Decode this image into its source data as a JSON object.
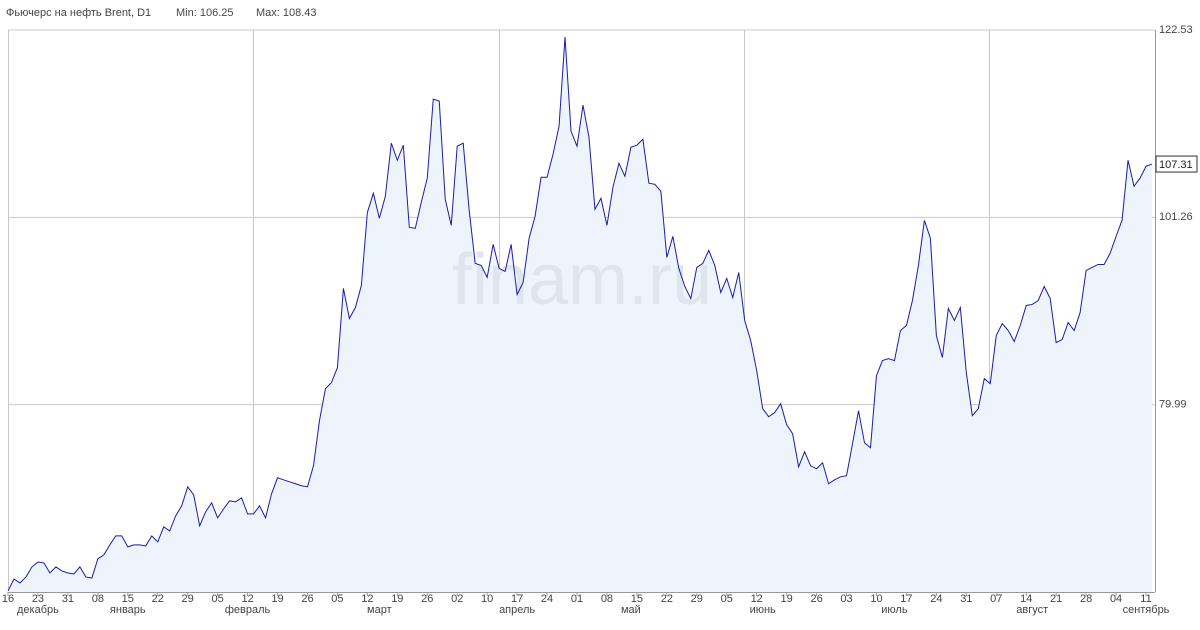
{
  "chart_data": {
    "type": "area",
    "title": "Фьючерс на нефть Brent, D1",
    "min_label": "Min: 106.25",
    "max_label": "Max: 108.43",
    "watermark": "finam.ru",
    "color": "#1c1caa",
    "fill_color": "#edf4fc",
    "grid": true,
    "ylim": [
      58.72,
      122.53
    ],
    "yticks": [
      79.99,
      101.26,
      122.53
    ],
    "categories": [
      "16",
      null,
      null,
      null,
      null,
      "23",
      null,
      null,
      null,
      null,
      "31",
      null,
      null,
      null,
      null,
      "08",
      null,
      null,
      null,
      null,
      "15",
      null,
      null,
      null,
      null,
      "22",
      null,
      null,
      null,
      null,
      "29",
      null,
      null,
      null,
      null,
      "05",
      null,
      null,
      null,
      null,
      "12",
      null,
      null,
      null,
      null,
      "19",
      null,
      null,
      null,
      null,
      "26",
      null,
      null,
      null,
      null,
      "05",
      null,
      null,
      null,
      null,
      "12",
      null,
      null,
      null,
      null,
      "19",
      null,
      null,
      null,
      null,
      "26",
      null,
      null,
      null,
      null,
      "02",
      null,
      null,
      null,
      null,
      "10",
      null,
      null,
      null,
      null,
      "17",
      null,
      null,
      null,
      null,
      "24",
      null,
      null,
      null,
      null,
      "01",
      null,
      null,
      null,
      null,
      "08",
      null,
      null,
      null,
      null,
      "15",
      null,
      null,
      null,
      null,
      "22",
      null,
      null,
      null,
      null,
      "29",
      null,
      null,
      null,
      null,
      "05",
      null,
      null,
      null,
      null,
      "12",
      null,
      null,
      null,
      null,
      "19",
      null,
      null,
      null,
      null,
      "26",
      null,
      null,
      null,
      null,
      "03",
      null,
      null,
      null,
      null,
      "10",
      null,
      null,
      null,
      null,
      "17",
      null,
      null,
      null,
      null,
      "24",
      null,
      null,
      null,
      null,
      "31",
      null,
      null,
      null,
      null,
      "07",
      null,
      null,
      null,
      null,
      "14",
      null,
      null,
      null,
      null,
      "21",
      null,
      null,
      null,
      null,
      "28",
      null,
      null,
      null,
      null,
      "04",
      null,
      null,
      null,
      null,
      "11",
      null
    ],
    "months": [
      null,
      null,
      null,
      null,
      null,
      "декабрь",
      null,
      null,
      null,
      null,
      null,
      null,
      null,
      null,
      null,
      null,
      null,
      null,
      null,
      null,
      "январь",
      null,
      null,
      null,
      null,
      null,
      null,
      null,
      null,
      null,
      null,
      null,
      null,
      null,
      null,
      null,
      null,
      null,
      null,
      null,
      "февраль",
      null,
      null,
      null,
      null,
      null,
      null,
      null,
      null,
      null,
      null,
      null,
      null,
      null,
      null,
      null,
      null,
      null,
      null,
      null,
      null,
      null,
      "март",
      null,
      null,
      null,
      null,
      null,
      null,
      null,
      null,
      null,
      null,
      null,
      null,
      null,
      null,
      null,
      null,
      null,
      null,
      null,
      null,
      null,
      null,
      "апрель",
      null,
      null,
      null,
      null,
      null,
      null,
      null,
      null,
      null,
      null,
      null,
      null,
      null,
      null,
      null,
      null,
      null,
      null,
      "май",
      null,
      null,
      null,
      null,
      null,
      null,
      null,
      null,
      null,
      null,
      null,
      null,
      null,
      null,
      null,
      null,
      null,
      null,
      null,
      null,
      null,
      "июнь",
      null,
      null,
      null,
      null,
      null,
      null,
      null,
      null,
      null,
      null,
      null,
      null,
      null,
      null,
      null,
      null,
      null,
      null,
      null,
      null,
      null,
      "июль",
      null,
      null,
      null,
      null,
      null,
      null,
      null,
      null,
      null,
      null,
      null,
      null,
      null,
      null,
      null,
      null,
      null,
      null,
      null,
      null,
      null,
      null,
      "август",
      null,
      null,
      null,
      null,
      null,
      null,
      null,
      null,
      null,
      null,
      null,
      null,
      null,
      null,
      null,
      null,
      null,
      null,
      "сентябрь",
      null
    ],
    "values": [
      58.84,
      60.2,
      59.75,
      60.43,
      61.57,
      62.13,
      62.02,
      60.88,
      61.57,
      61.11,
      60.88,
      60.77,
      61.57,
      60.43,
      60.31,
      62.48,
      62.93,
      64.07,
      65.09,
      65.09,
      63.84,
      64.07,
      64.07,
      63.95,
      65.09,
      64.41,
      66.11,
      65.66,
      67.37,
      68.5,
      70.66,
      69.75,
      66.23,
      67.82,
      68.84,
      67.14,
      68.16,
      69.07,
      68.96,
      69.41,
      67.59,
      67.59,
      68.5,
      67.14,
      69.87,
      71.69,
      71.46,
      71.23,
      71.01,
      70.78,
      70.66,
      73.05,
      78.17,
      81.81,
      82.49,
      84.2,
      93.19,
      89.77,
      91.02,
      93.53,
      101.83,
      103.99,
      101.15,
      103.65,
      109.68,
      107.74,
      109.45,
      100.12,
      100.01,
      102.97,
      105.7,
      114.68,
      114.45,
      103.31,
      100.35,
      109.34,
      109.68,
      102.06,
      96.03,
      95.8,
      94.44,
      98.19,
      95.46,
      95.12,
      98.19,
      92.5,
      93.87,
      98.87,
      101.37,
      105.81,
      105.81,
      108.43,
      111.61,
      121.73,
      111.04,
      109.34,
      114.0,
      110.36,
      102.17,
      103.42,
      100.35,
      104.67,
      107.4,
      105.92,
      109.22,
      109.45,
      110.13,
      105.13,
      105.01,
      104.22,
      96.71,
      99.1,
      95.46,
      93.41,
      92.05,
      95.57,
      96.03,
      97.51,
      95.8,
      92.73,
      94.32,
      92.16,
      95.0,
      89.55,
      87.27,
      83.86,
      79.54,
      78.63,
      79.08,
      80.1,
      77.72,
      76.69,
      72.94,
      74.65,
      73.05,
      72.71,
      73.39,
      71.01,
      71.46,
      71.8,
      71.92,
      75.56,
      79.31,
      75.67,
      75.1,
      83.29,
      85.0,
      85.22,
      85.0,
      88.41,
      88.98,
      91.82,
      95.8,
      100.92,
      98.87,
      87.84,
      85.34,
      90.91,
      89.55,
      91.02,
      83.63,
      78.74,
      79.54,
      82.95,
      82.38,
      87.84,
      89.2,
      88.41,
      87.16,
      88.98,
      91.25,
      91.37,
      91.82,
      93.41,
      92.05,
      87.04,
      87.38,
      89.32,
      88.41,
      90.46,
      95.23,
      95.57,
      95.91,
      95.91,
      97.17,
      99.1,
      100.92,
      107.74,
      104.79,
      105.7,
      107.06,
      107.31
    ]
  }
}
